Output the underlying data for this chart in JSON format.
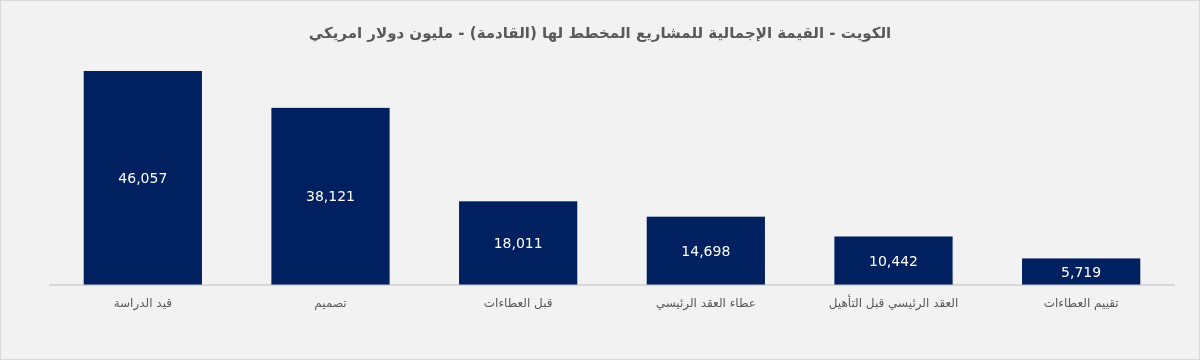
{
  "chart_data": {
    "type": "bar",
    "title": "الكويت - القيمة الإجمالية للمشاريع المخطط لها (القادمة) - مليون دولار امريكي",
    "categories": [
      "قيد الدراسة",
      "تصميم",
      "قبل العطاءات",
      "عطاء العقد الرئيسي",
      "العقد الرئيسي قبل التأهيل",
      "تقييم العطاءات"
    ],
    "values": [
      46057,
      38121,
      18011,
      14698,
      10442,
      5719
    ],
    "value_labels": [
      "46,057",
      "38,121",
      "18,011",
      "14,698",
      "10,442",
      "5,719"
    ],
    "color": "#002060"
  }
}
